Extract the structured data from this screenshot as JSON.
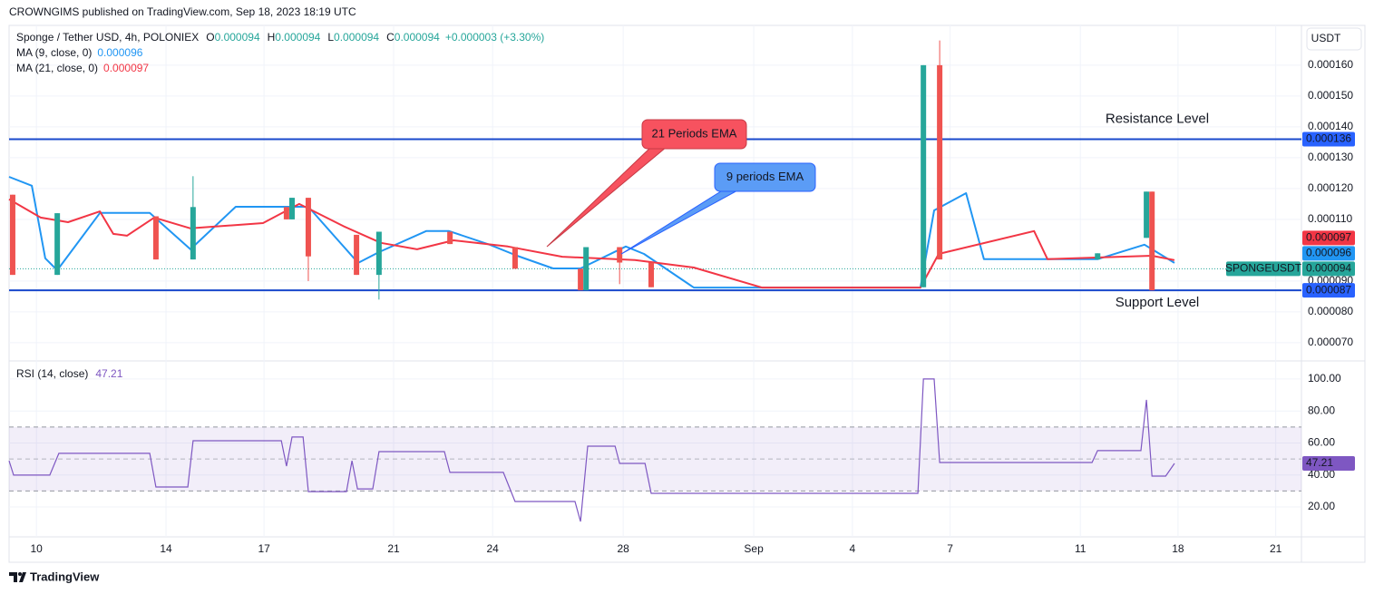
{
  "header": {
    "publisher": "CROWNGIMS published on TradingView.com, Sep 18, 2023 18:19 UTC"
  },
  "currency_button": "USDT",
  "footer": {
    "logo": "TradingView"
  },
  "chart_data": [
    {
      "type": "candlestick",
      "title": "Sponge / Tether USD, 4h, POLONIEX",
      "ohlc_legend": [
        {
          "key": "O",
          "text": "0.000094"
        },
        {
          "key": "H",
          "text": "0.000094"
        },
        {
          "key": "L",
          "text": "0.000094"
        },
        {
          "key": "C",
          "text": "0.000094"
        }
      ],
      "change": "+0.000003 (+3.30%)",
      "xlim": [
        0,
        39.69
      ],
      "xticks": [
        {
          "value": 0.84,
          "label": "10"
        },
        {
          "value": 4.82,
          "label": "14"
        },
        {
          "value": 7.83,
          "label": "17"
        },
        {
          "value": 11.81,
          "label": "21"
        },
        {
          "value": 14.85,
          "label": "24"
        },
        {
          "value": 18.86,
          "label": "28"
        },
        {
          "value": 22.87,
          "label": "Sep"
        },
        {
          "value": 25.9,
          "label": "4"
        },
        {
          "value": 28.9,
          "label": "7"
        },
        {
          "value": 32.9,
          "label": "11"
        },
        {
          "value": 35.9,
          "label": "18"
        },
        {
          "value": 38.9,
          "label": "21"
        }
      ],
      "ylim": [
        6.41e-05,
        0.0001729
      ],
      "yticks": [
        {
          "value": 0.00016,
          "label": "0.000160"
        },
        {
          "value": 0.00015,
          "label": "0.000150"
        },
        {
          "value": 0.00014,
          "label": "0.000140"
        },
        {
          "value": 0.00013,
          "label": "0.000130"
        },
        {
          "value": 0.00012,
          "label": "0.000120"
        },
        {
          "value": 0.00011,
          "label": "0.000110"
        },
        {
          "value": 9e-05,
          "label": "0.000090"
        },
        {
          "value": 8e-05,
          "label": "0.000080"
        },
        {
          "value": 7e-05,
          "label": "0.000070"
        }
      ],
      "grid": true,
      "candles": {
        "up_color": "#26a69a",
        "down_color": "#ef5350",
        "x": [
          0.11,
          1.48,
          4.51,
          5.65,
          8.52,
          8.69,
          9.19,
          10.67,
          11.36,
          13.54,
          15.54,
          17.55,
          17.72,
          18.75,
          19.72,
          28.08,
          28.58,
          33.43,
          34.93,
          35.1
        ],
        "open": [
          0.000118,
          9.2e-05,
          0.000111,
          9.7e-05,
          0.000114,
          0.00011,
          0.000117,
          0.000105,
          9.2e-05,
          0.000106,
          0.000101,
          9.4e-05,
          8.7e-05,
          0.000101,
          9.6e-05,
          8.8e-05,
          0.00016,
          9.7e-05,
          0.000104,
          0.000119
        ],
        "high": [
          0.000118,
          0.000112,
          0.000111,
          0.000124,
          0.000114,
          0.000117,
          0.000117,
          0.000105,
          0.000106,
          0.000106,
          0.000101,
          9.4e-05,
          0.000101,
          0.000101,
          9.6e-05,
          0.00016,
          0.000168,
          9.9e-05,
          0.000119,
          0.000119
        ],
        "low": [
          9.2e-05,
          9.2e-05,
          9.7e-05,
          9.7e-05,
          0.00011,
          0.00011,
          9e-05,
          9.2e-05,
          8.4e-05,
          0.000102,
          9.4e-05,
          8.7e-05,
          8.7e-05,
          8.9e-05,
          8.8e-05,
          8.8e-05,
          9.7e-05,
          9.7e-05,
          0.000104,
          8.7e-05
        ],
        "close": [
          9.2e-05,
          0.000112,
          9.7e-05,
          0.000114,
          0.00011,
          0.000117,
          9.8e-05,
          9.2e-05,
          0.000106,
          0.000102,
          9.4e-05,
          8.7e-05,
          0.000101,
          9.6e-05,
          8.8e-05,
          0.00016,
          9.7e-05,
          9.9e-05,
          0.000119,
          8.7e-05
        ]
      },
      "series": [
        {
          "name": "MA (9, close, 0)",
          "last_label": "0.000096",
          "last_value": 9.6e-05,
          "color": "#2196f3",
          "x": [
            0,
            0.7,
            1.11,
            1.48,
            2.79,
            4.32,
            5.57,
            6.96,
            8.36,
            9.19,
            10.03,
            10.72,
            11.36,
            12.81,
            13.51,
            14.76,
            15.6,
            16.71,
            17.55,
            18.94,
            19.5,
            21.03,
            27.99,
            28.41,
            29.39,
            29.94,
            33.43,
            34.87,
            35.79
          ],
          "values": [
            0.0001238,
            0.0001209,
            9.74e-05,
            9.35e-05,
            0.0001121,
            0.0001121,
            0.0001003,
            0.0001141,
            0.0001141,
            0.0001141,
            0.0001041,
            9.59e-05,
            9.94e-05,
            0.0001062,
            0.0001062,
            0.0001018,
            9.82e-05,
            9.41e-05,
            9.41e-05,
            0.0001012,
            9.88e-05,
            8.79e-05,
            8.79e-05,
            0.0001129,
            0.0001185,
            9.71e-05,
            9.71e-05,
            0.0001018,
            9.59e-05
          ]
        },
        {
          "name": "MA (21, close, 0)",
          "last_label": "0.000097",
          "last_value": 9.7e-05,
          "color": "#f23645",
          "x": [
            0,
            0.97,
            1.81,
            2.79,
            3.2,
            3.62,
            4.46,
            5.57,
            7.8,
            8.91,
            10.31,
            11.42,
            12.53,
            13.65,
            15.32,
            16.99,
            19.22,
            21.03,
            23.12,
            27.99,
            28.55,
            31.48,
            31.89,
            35.1,
            35.79
          ],
          "values": [
            0.0001165,
            0.0001106,
            0.0001091,
            0.0001126,
            0.0001053,
            0.0001047,
            0.0001106,
            0.0001071,
            0.0001088,
            0.000115,
            0.0001076,
            0.0001024,
            0.0001003,
            0.0001032,
            0.0001012,
            9.79e-05,
            9.68e-05,
            9.44e-05,
            8.79e-05,
            8.79e-05,
            9.88e-05,
            0.0001062,
            9.71e-05,
            9.82e-05,
            9.68e-05
          ]
        }
      ],
      "levels": [
        {
          "name": "Resistance Level",
          "value": 0.000136,
          "label": "0.000136",
          "color": "#f23645"
        },
        {
          "name": "Support Level",
          "value": 8.7e-05,
          "label": "0.000087",
          "color": "#2962ff"
        }
      ],
      "last_price": {
        "symbol": "SPONGEUSDT",
        "value": 9.4e-05,
        "label": "0.000094",
        "color": "#26a69a"
      },
      "annotations": [
        {
          "text": "21 Periods EMA",
          "color": "#f7525f"
        },
        {
          "text": "9 periods EMA",
          "color": "#5b9cf6"
        }
      ]
    },
    {
      "type": "line",
      "title": "RSI (14, close)",
      "last_label": "47.21",
      "last_value": 47.21,
      "color": "#7e57c2",
      "ylim": [
        1.3,
        111.3
      ],
      "yticks": [
        {
          "value": 100,
          "label": "100.00"
        },
        {
          "value": 80,
          "label": "80.00"
        },
        {
          "value": 60,
          "label": "60.00"
        },
        {
          "value": 40,
          "label": "40.00"
        },
        {
          "value": 20,
          "label": "20.00"
        }
      ],
      "bands": [
        30,
        70
      ],
      "middle": 50,
      "x": [
        0,
        0.14,
        1.25,
        1.53,
        4.32,
        4.51,
        5.49,
        5.65,
        8.36,
        8.52,
        8.69,
        9.03,
        9.19,
        10.36,
        10.53,
        10.7,
        11.17,
        11.36,
        13.37,
        13.54,
        15.18,
        15.54,
        17.38,
        17.55,
        17.77,
        18.61,
        18.75,
        19.53,
        19.72,
        27.91,
        28.08,
        28.41,
        28.58,
        33.26,
        33.43,
        34.76,
        34.93,
        35.1,
        35.52,
        35.79
      ],
      "values": [
        48.9,
        39.9,
        39.9,
        53.5,
        53.5,
        32.5,
        32.5,
        61.4,
        61.4,
        45.5,
        63.7,
        63.7,
        29.6,
        29.6,
        48.9,
        31.3,
        31.3,
        54.6,
        54.6,
        41.6,
        41.6,
        23.4,
        23.4,
        10.9,
        58.0,
        58.0,
        47.2,
        47.2,
        28.5,
        28.5,
        100,
        100,
        47.8,
        47.8,
        55.2,
        55.2,
        87.0,
        39.3,
        39.3,
        47.21
      ]
    }
  ]
}
